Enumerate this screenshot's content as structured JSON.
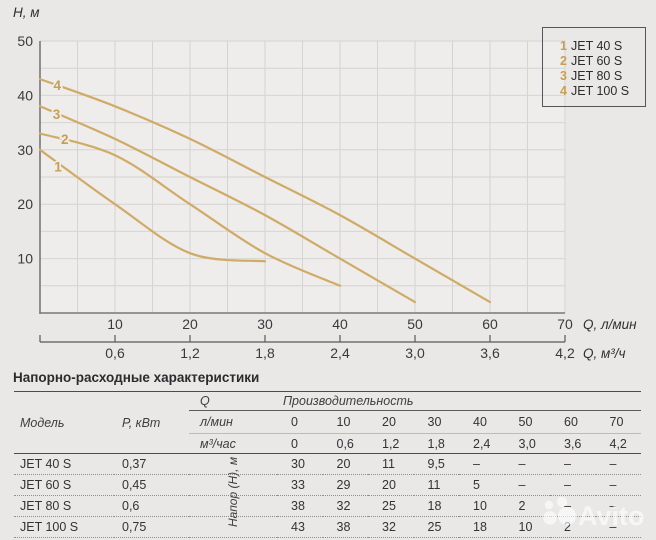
{
  "chart_data": {
    "type": "line",
    "title": "",
    "y_axis": {
      "label": "H, м",
      "ticks": [
        10,
        20,
        30,
        40,
        50
      ],
      "ylim": [
        0,
        50
      ]
    },
    "x_axis": {
      "label_primary": "Q, л/мин",
      "label_secondary": "Q, м³/ч",
      "ticks_primary": [
        10,
        20,
        30,
        40,
        50,
        60,
        70
      ],
      "ticks_secondary": [
        "0,6",
        "1,2",
        "1,8",
        "2,4",
        "3,0",
        "3,6",
        "4,2"
      ],
      "xlim": [
        0,
        70
      ]
    },
    "grid": {
      "on": true,
      "step": 5
    },
    "series": [
      {
        "num": "1",
        "name": "JET 40 S",
        "x": [
          0,
          10,
          20,
          30
        ],
        "y": [
          30,
          20,
          11,
          9.5
        ],
        "label_pos": {
          "x": 2.4,
          "y": 26.8
        }
      },
      {
        "num": "2",
        "name": "JET 60 S",
        "x": [
          0,
          10,
          20,
          30,
          40
        ],
        "y": [
          33,
          29,
          20,
          11,
          5
        ],
        "label_pos": {
          "x": 3.3,
          "y": 31.9
        }
      },
      {
        "num": "3",
        "name": "JET 80 S",
        "x": [
          0,
          10,
          20,
          30,
          40,
          50
        ],
        "y": [
          38,
          32,
          25,
          18,
          10,
          2
        ],
        "label_pos": {
          "x": 2.2,
          "y": 36.5
        }
      },
      {
        "num": "4",
        "name": "JET 100 S",
        "x": [
          0,
          10,
          20,
          30,
          40,
          50,
          60
        ],
        "y": [
          43,
          38,
          32,
          25,
          18,
          10,
          2
        ],
        "label_pos": {
          "x": 2.3,
          "y": 41.8
        }
      }
    ],
    "legend": {
      "position": "top-right",
      "items": [
        {
          "num": "1",
          "name": "JET 40 S"
        },
        {
          "num": "2",
          "name": "JET 60 S"
        },
        {
          "num": "3",
          "name": "JET 80 S"
        },
        {
          "num": "4",
          "name": "JET 100 S"
        }
      ]
    },
    "colors": {
      "background": "#e9e8e6",
      "plot_fill": "#eeedeb",
      "curve": "#cfab66",
      "curve_label": "#c79e52",
      "grid": "#d5d4d2",
      "axis": "#77787a",
      "text": "#3a3a3c"
    }
  },
  "table": {
    "title": "Напорно-расходные характеристики",
    "col_model": "Модель",
    "col_power": "P, кВт",
    "q_label": "Q",
    "productivity_label": "Производительность",
    "unit_lmin": "л/мин",
    "unit_m3h": "м³/час",
    "flow_lmin": [
      "0",
      "10",
      "20",
      "30",
      "40",
      "50",
      "60",
      "70"
    ],
    "flow_m3h": [
      "0",
      "0,6",
      "1,2",
      "1,8",
      "2,4",
      "3,0",
      "3,6",
      "4,2"
    ],
    "head_label": "Напор (H), м",
    "rows": [
      {
        "model": "JET 40 S",
        "power": "0,37",
        "values": [
          "30",
          "20",
          "11",
          "9,5",
          "–",
          "–",
          "–",
          "–"
        ]
      },
      {
        "model": "JET 60 S",
        "power": "0,45",
        "values": [
          "33",
          "29",
          "20",
          "11",
          "5",
          "–",
          "–",
          "–"
        ]
      },
      {
        "model": "JET 80 S",
        "power": "0,6",
        "values": [
          "38",
          "32",
          "25",
          "18",
          "10",
          "2",
          "–",
          "–"
        ]
      },
      {
        "model": "JET 100 S",
        "power": "0,75",
        "values": [
          "43",
          "38",
          "32",
          "25",
          "18",
          "10",
          "2",
          "–"
        ]
      }
    ]
  },
  "watermark": {
    "text": "Avito"
  }
}
